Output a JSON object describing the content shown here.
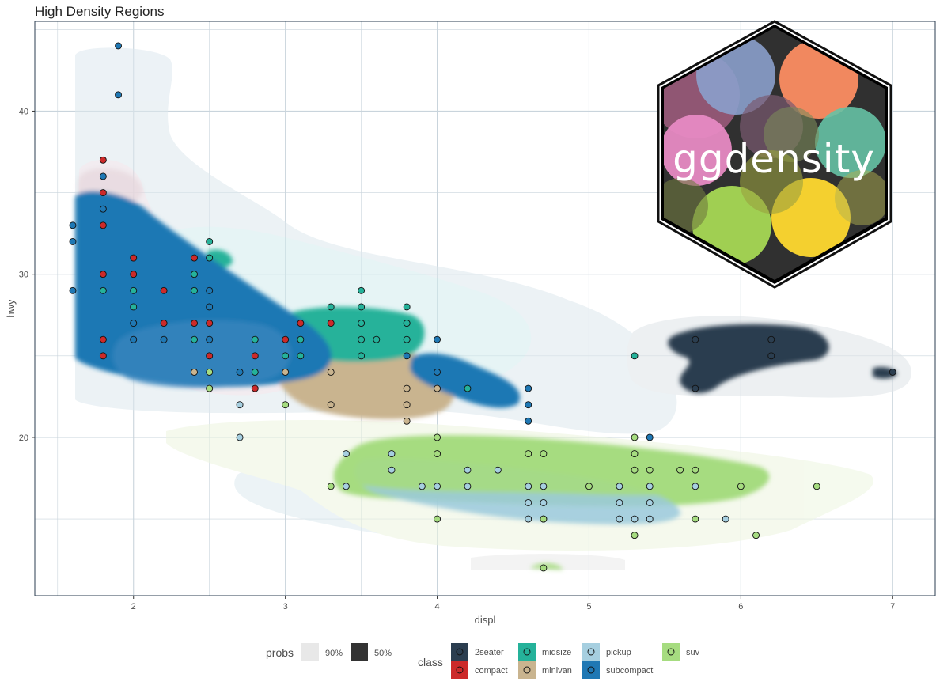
{
  "colors": {
    "2seater": "#2b3e50",
    "compact": "#cc2a2a",
    "midsize": "#25b29a",
    "minivan": "#c9b48f",
    "pickup": "#a6cfe0",
    "subcompact": "#1f78b4",
    "suv": "#a6dc80",
    "grid": "#c9d4dc",
    "frame": "#2b3e50"
  },
  "logo": {
    "text": "ggdensity"
  },
  "chart_data": {
    "type": "scatter",
    "title": "High Density Regions",
    "xlabel": "displ",
    "ylabel": "hwy",
    "xlim": [
      1.35,
      7.28
    ],
    "ylim": [
      10.3,
      45.5
    ],
    "xticks": [
      2,
      3,
      4,
      5,
      6,
      7
    ],
    "yticks": [
      20,
      30,
      40
    ],
    "grid": true,
    "legend": {
      "position": "bottom",
      "probs": {
        "title": "probs",
        "items": [
          "90%",
          "50%"
        ]
      },
      "class": {
        "title": "class",
        "items": [
          "2seater",
          "compact",
          "midsize",
          "minivan",
          "pickup",
          "subcompact",
          "suv"
        ]
      }
    },
    "series": [
      {
        "name": "2seater",
        "points": [
          [
            5.7,
            26
          ],
          [
            5.7,
            23
          ],
          [
            6.2,
            26
          ],
          [
            6.2,
            25
          ],
          [
            7.0,
            24
          ]
        ]
      },
      {
        "name": "compact",
        "points": [
          [
            1.8,
            37
          ],
          [
            1.8,
            35
          ],
          [
            1.8,
            33
          ],
          [
            1.8,
            30
          ],
          [
            1.8,
            26
          ],
          [
            1.8,
            25
          ],
          [
            2.0,
            31
          ],
          [
            2.0,
            30
          ],
          [
            2.2,
            29
          ],
          [
            2.2,
            27
          ],
          [
            2.4,
            31
          ],
          [
            2.4,
            27
          ],
          [
            2.5,
            27
          ],
          [
            2.5,
            25
          ],
          [
            2.8,
            25
          ],
          [
            2.8,
            23
          ],
          [
            3.0,
            26
          ],
          [
            3.1,
            27
          ],
          [
            3.3,
            27
          ]
        ]
      },
      {
        "name": "midsize",
        "points": [
          [
            1.8,
            29
          ],
          [
            2.0,
            29
          ],
          [
            2.0,
            28
          ],
          [
            2.4,
            30
          ],
          [
            2.4,
            29
          ],
          [
            2.4,
            26
          ],
          [
            2.5,
            32
          ],
          [
            2.5,
            31
          ],
          [
            2.8,
            26
          ],
          [
            2.8,
            24
          ],
          [
            3.0,
            25
          ],
          [
            3.1,
            26
          ],
          [
            3.1,
            25
          ],
          [
            3.3,
            28
          ],
          [
            3.5,
            29
          ],
          [
            3.5,
            28
          ],
          [
            3.5,
            27
          ],
          [
            3.5,
            26
          ],
          [
            3.5,
            25
          ],
          [
            3.6,
            26
          ],
          [
            3.8,
            28
          ],
          [
            3.8,
            27
          ],
          [
            3.8,
            26
          ],
          [
            4.2,
            23
          ],
          [
            5.3,
            25
          ]
        ]
      },
      {
        "name": "minivan",
        "points": [
          [
            2.4,
            24
          ],
          [
            3.0,
            24
          ],
          [
            3.3,
            24
          ],
          [
            3.3,
            22
          ],
          [
            3.8,
            23
          ],
          [
            3.8,
            22
          ],
          [
            3.8,
            21
          ],
          [
            4.0,
            23
          ]
        ]
      },
      {
        "name": "pickup",
        "points": [
          [
            2.7,
            22
          ],
          [
            2.7,
            20
          ],
          [
            3.4,
            19
          ],
          [
            3.4,
            17
          ],
          [
            3.7,
            19
          ],
          [
            3.7,
            18
          ],
          [
            3.9,
            17
          ],
          [
            4.0,
            17
          ],
          [
            4.2,
            18
          ],
          [
            4.2,
            17
          ],
          [
            4.4,
            18
          ],
          [
            4.6,
            17
          ],
          [
            4.6,
            16
          ],
          [
            4.6,
            15
          ],
          [
            4.7,
            17
          ],
          [
            4.7,
            16
          ],
          [
            4.7,
            15
          ],
          [
            5.2,
            17
          ],
          [
            5.2,
            16
          ],
          [
            5.2,
            15
          ],
          [
            5.3,
            15
          ],
          [
            5.4,
            17
          ],
          [
            5.4,
            16
          ],
          [
            5.4,
            15
          ],
          [
            5.7,
            17
          ],
          [
            5.9,
            15
          ]
        ]
      },
      {
        "name": "subcompact",
        "points": [
          [
            1.6,
            33
          ],
          [
            1.6,
            32
          ],
          [
            1.6,
            29
          ],
          [
            1.8,
            36
          ],
          [
            1.8,
            34
          ],
          [
            1.9,
            44
          ],
          [
            1.9,
            41
          ],
          [
            2.0,
            27
          ],
          [
            2.0,
            26
          ],
          [
            2.2,
            26
          ],
          [
            2.5,
            29
          ],
          [
            2.5,
            28
          ],
          [
            2.5,
            26
          ],
          [
            2.7,
            24
          ],
          [
            3.8,
            25
          ],
          [
            4.0,
            26
          ],
          [
            4.0,
            24
          ],
          [
            4.6,
            23
          ],
          [
            4.6,
            22
          ],
          [
            4.6,
            21
          ],
          [
            5.4,
            20
          ]
        ]
      },
      {
        "name": "suv",
        "points": [
          [
            2.5,
            24
          ],
          [
            2.5,
            23
          ],
          [
            3.0,
            22
          ],
          [
            3.3,
            17
          ],
          [
            4.0,
            20
          ],
          [
            4.0,
            19
          ],
          [
            4.0,
            15
          ],
          [
            4.6,
            19
          ],
          [
            4.7,
            19
          ],
          [
            4.7,
            15
          ],
          [
            4.7,
            12
          ],
          [
            5.0,
            17
          ],
          [
            5.3,
            20
          ],
          [
            5.3,
            19
          ],
          [
            5.3,
            18
          ],
          [
            5.3,
            14
          ],
          [
            5.4,
            18
          ],
          [
            5.6,
            18
          ],
          [
            5.7,
            18
          ],
          [
            5.7,
            15
          ],
          [
            6.0,
            17
          ],
          [
            6.1,
            14
          ],
          [
            6.5,
            17
          ]
        ]
      }
    ]
  }
}
